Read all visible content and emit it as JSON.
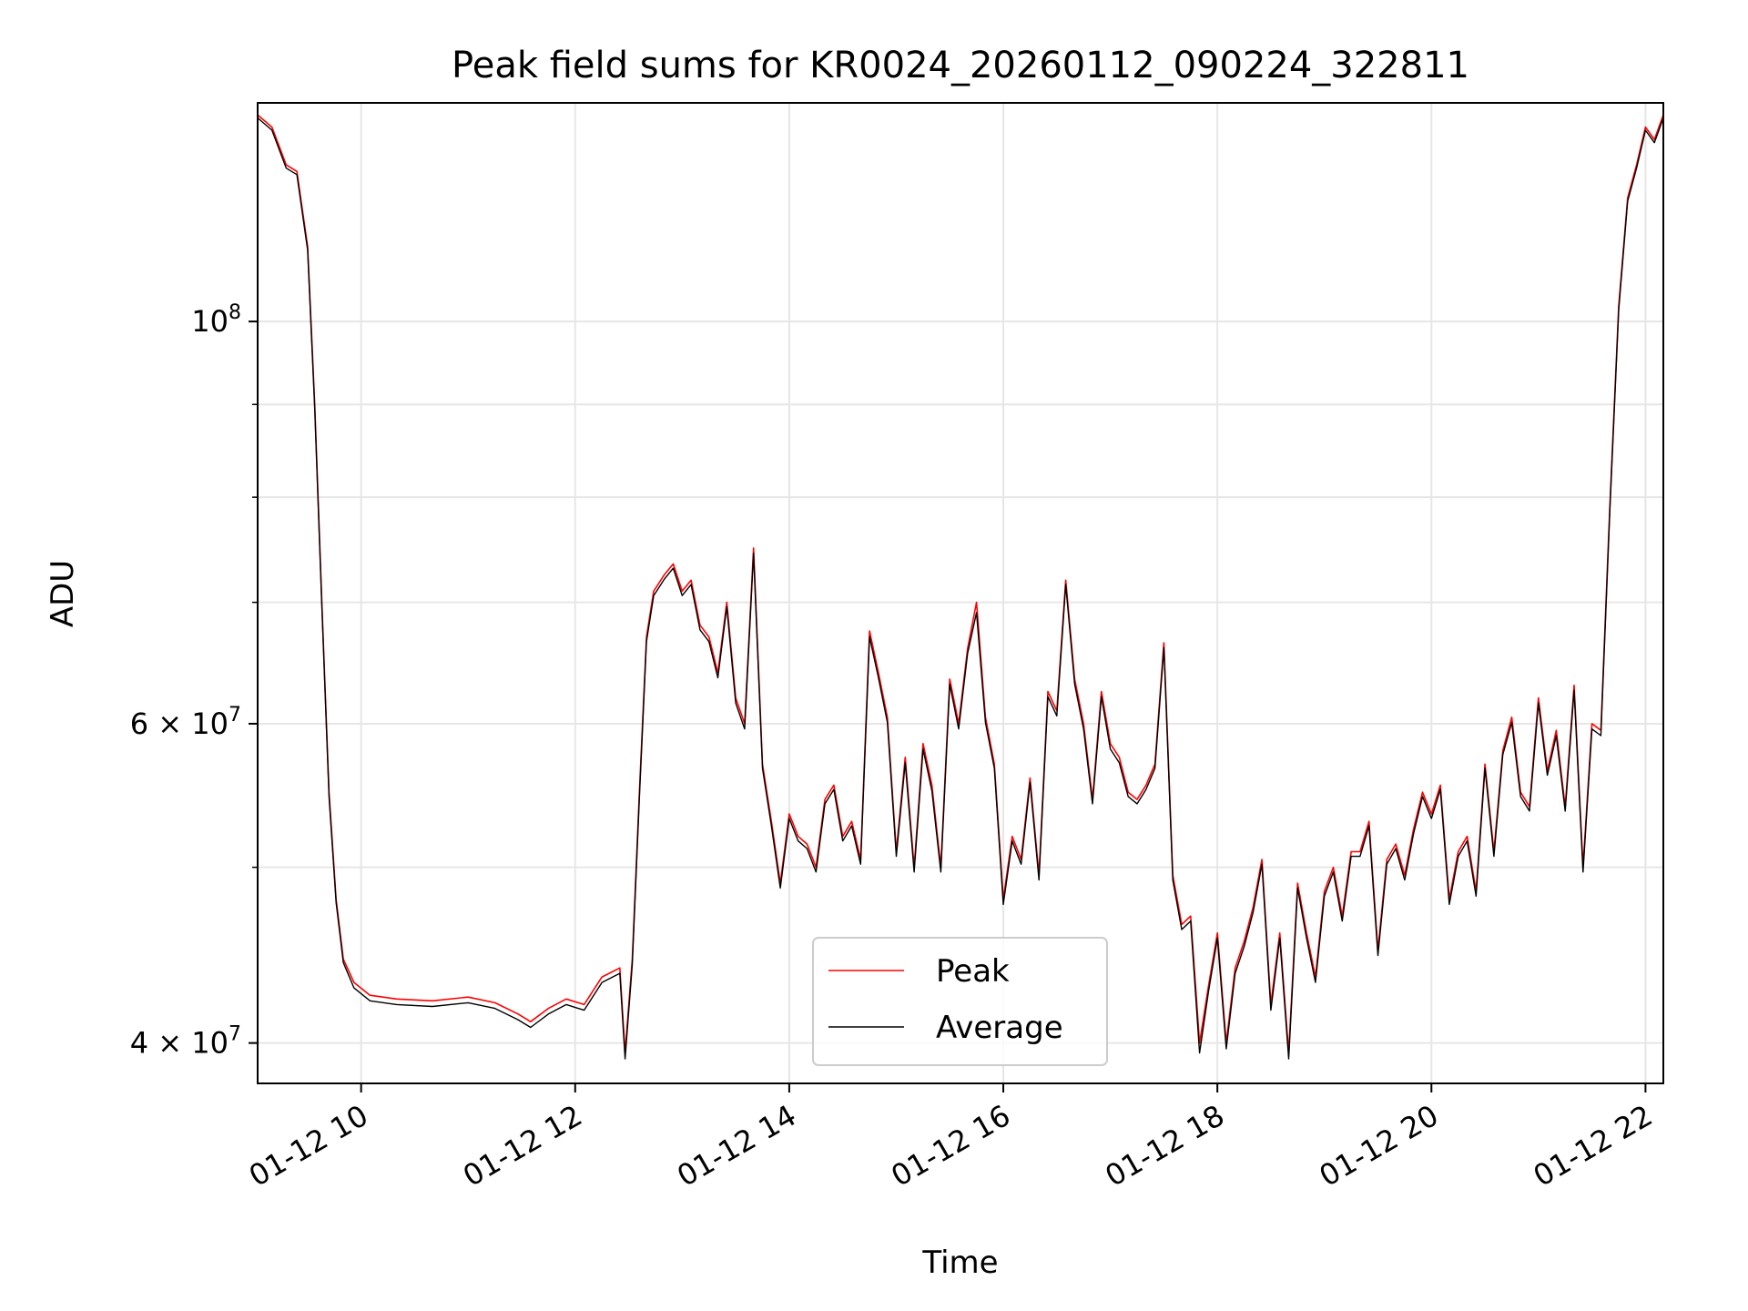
{
  "chart_data": {
    "type": "line",
    "title": "Peak field sums for KR0024_20260112_090224_322811",
    "xlabel": "Time",
    "ylabel": "ADU",
    "y_scale": "log",
    "grid": true,
    "legend_position": "lower-center",
    "xlim": [
      "01-12 09:02",
      "01-12 22:10"
    ],
    "ylim": [
      38000000,
      132000000
    ],
    "x_tick_labels": [
      "01-12 10",
      "01-12 12",
      "01-12 14",
      "01-12 16",
      "01-12 18",
      "01-12 20",
      "01-12 22"
    ],
    "x_ticks": [
      "01-12 10:00",
      "01-12 12:00",
      "01-12 14:00",
      "01-12 16:00",
      "01-12 18:00",
      "01-12 20:00",
      "01-12 22:00"
    ],
    "y_ticks": [
      {
        "value": 40000000,
        "label": "4 × 10",
        "exp": "7"
      },
      {
        "value": 60000000,
        "label": "6 × 10",
        "exp": "7"
      },
      {
        "value": 100000000,
        "label": "10",
        "exp": "8"
      }
    ],
    "y_minor_ticks": [
      50000000,
      70000000,
      80000000,
      90000000
    ],
    "series": [
      {
        "name": "Peak",
        "color": "#ff0000",
        "x": [
          "01-12 09:02",
          "01-12 09:10",
          "01-12 09:18",
          "01-12 09:24",
          "01-12 09:30",
          "01-12 09:34",
          "01-12 09:38",
          "01-12 09:42",
          "01-12 09:46",
          "01-12 09:50",
          "01-12 09:56",
          "01-12 10:05",
          "01-12 10:20",
          "01-12 10:40",
          "01-12 11:00",
          "01-12 11:15",
          "01-12 11:28",
          "01-12 11:35",
          "01-12 11:45",
          "01-12 11:55",
          "01-12 12:05",
          "01-12 12:15",
          "01-12 12:25",
          "01-12 12:28",
          "01-12 12:32",
          "01-12 12:36",
          "01-12 12:40",
          "01-12 12:44",
          "01-12 12:50",
          "01-12 12:55",
          "01-12 13:00",
          "01-12 13:05",
          "01-12 13:10",
          "01-12 13:15",
          "01-12 13:20",
          "01-12 13:25",
          "01-12 13:30",
          "01-12 13:35",
          "01-12 13:40",
          "01-12 13:45",
          "01-12 13:50",
          "01-12 13:55",
          "01-12 14:00",
          "01-12 14:05",
          "01-12 14:10",
          "01-12 14:15",
          "01-12 14:20",
          "01-12 14:25",
          "01-12 14:30",
          "01-12 14:35",
          "01-12 14:40",
          "01-12 14:45",
          "01-12 14:50",
          "01-12 14:55",
          "01-12 15:00",
          "01-12 15:05",
          "01-12 15:10",
          "01-12 15:15",
          "01-12 15:20",
          "01-12 15:25",
          "01-12 15:30",
          "01-12 15:35",
          "01-12 15:40",
          "01-12 15:45",
          "01-12 15:50",
          "01-12 15:55",
          "01-12 16:00",
          "01-12 16:05",
          "01-12 16:10",
          "01-12 16:15",
          "01-12 16:20",
          "01-12 16:25",
          "01-12 16:30",
          "01-12 16:35",
          "01-12 16:40",
          "01-12 16:45",
          "01-12 16:50",
          "01-12 16:55",
          "01-12 17:00",
          "01-12 17:05",
          "01-12 17:10",
          "01-12 17:15",
          "01-12 17:20",
          "01-12 17:25",
          "01-12 17:30",
          "01-12 17:35",
          "01-12 17:40",
          "01-12 17:45",
          "01-12 17:50",
          "01-12 17:55",
          "01-12 18:00",
          "01-12 18:05",
          "01-12 18:10",
          "01-12 18:15",
          "01-12 18:20",
          "01-12 18:25",
          "01-12 18:30",
          "01-12 18:35",
          "01-12 18:40",
          "01-12 18:45",
          "01-12 18:50",
          "01-12 18:55",
          "01-12 19:00",
          "01-12 19:05",
          "01-12 19:10",
          "01-12 19:15",
          "01-12 19:20",
          "01-12 19:25",
          "01-12 19:30",
          "01-12 19:35",
          "01-12 19:40",
          "01-12 19:45",
          "01-12 19:50",
          "01-12 19:55",
          "01-12 20:00",
          "01-12 20:05",
          "01-12 20:10",
          "01-12 20:15",
          "01-12 20:20",
          "01-12 20:25",
          "01-12 20:30",
          "01-12 20:35",
          "01-12 20:40",
          "01-12 20:45",
          "01-12 20:50",
          "01-12 20:55",
          "01-12 21:00",
          "01-12 21:05",
          "01-12 21:10",
          "01-12 21:15",
          "01-12 21:20",
          "01-12 21:25",
          "01-12 21:30",
          "01-12 21:35",
          "01-12 21:40",
          "01-12 21:45",
          "01-12 21:50",
          "01-12 21:55",
          "01-12 22:00",
          "01-12 22:05",
          "01-12 22:10"
        ],
        "y": [
          130000000,
          128000000,
          122000000,
          121000000,
          110000000,
          90000000,
          70000000,
          55000000,
          48000000,
          44500000,
          43200000,
          42500000,
          42300000,
          42200000,
          42400000,
          42100000,
          41500000,
          41100000,
          41800000,
          42300000,
          42000000,
          43500000,
          44000000,
          39500000,
          44500000,
          55000000,
          67000000,
          71000000,
          72500000,
          73500000,
          71000000,
          72000000,
          68000000,
          67000000,
          64000000,
          70000000,
          62000000,
          60000000,
          75000000,
          57000000,
          53000000,
          49000000,
          53500000,
          52000000,
          51500000,
          50000000,
          54500000,
          55500000,
          52000000,
          53000000,
          50500000,
          67500000,
          64000000,
          60500000,
          51000000,
          57500000,
          50000000,
          58500000,
          55500000,
          50000000,
          63500000,
          60000000,
          66000000,
          70000000,
          60500000,
          57000000,
          48000000,
          52000000,
          50500000,
          56000000,
          49500000,
          62500000,
          61000000,
          72000000,
          63500000,
          60000000,
          54500000,
          62500000,
          58500000,
          57500000,
          55000000,
          54500000,
          55500000,
          57000000,
          66500000,
          49500000,
          46500000,
          47000000,
          40000000,
          43000000,
          46000000,
          40000000,
          44000000,
          45500000,
          47500000,
          50500000,
          42000000,
          46000000,
          39500000,
          49000000,
          46000000,
          43500000,
          48500000,
          50000000,
          47000000,
          51000000,
          51000000,
          53000000,
          45000000,
          50500000,
          51500000,
          49500000,
          52500000,
          55000000,
          53500000,
          55500000,
          48000000,
          51000000,
          52000000,
          48500000,
          57000000,
          51000000,
          58000000,
          60500000,
          55000000,
          54000000,
          62000000,
          56500000,
          59500000,
          54000000,
          63000000,
          50000000,
          60000000,
          59500000,
          79000000,
          102000000,
          117000000,
          122000000,
          128000000,
          126000000,
          130000000
        ]
      },
      {
        "name": "Average",
        "color": "#000000",
        "x": [
          "01-12 09:02",
          "01-12 09:10",
          "01-12 09:18",
          "01-12 09:24",
          "01-12 09:30",
          "01-12 09:34",
          "01-12 09:38",
          "01-12 09:42",
          "01-12 09:46",
          "01-12 09:50",
          "01-12 09:56",
          "01-12 10:05",
          "01-12 10:20",
          "01-12 10:40",
          "01-12 11:00",
          "01-12 11:15",
          "01-12 11:28",
          "01-12 11:35",
          "01-12 11:45",
          "01-12 11:55",
          "01-12 12:05",
          "01-12 12:15",
          "01-12 12:25",
          "01-12 12:28",
          "01-12 12:32",
          "01-12 12:36",
          "01-12 12:40",
          "01-12 12:44",
          "01-12 12:50",
          "01-12 12:55",
          "01-12 13:00",
          "01-12 13:05",
          "01-12 13:10",
          "01-12 13:15",
          "01-12 13:20",
          "01-12 13:25",
          "01-12 13:30",
          "01-12 13:35",
          "01-12 13:40",
          "01-12 13:45",
          "01-12 13:50",
          "01-12 13:55",
          "01-12 14:00",
          "01-12 14:05",
          "01-12 14:10",
          "01-12 14:15",
          "01-12 14:20",
          "01-12 14:25",
          "01-12 14:30",
          "01-12 14:35",
          "01-12 14:40",
          "01-12 14:45",
          "01-12 14:50",
          "01-12 14:55",
          "01-12 15:00",
          "01-12 15:05",
          "01-12 15:10",
          "01-12 15:15",
          "01-12 15:20",
          "01-12 15:25",
          "01-12 15:30",
          "01-12 15:35",
          "01-12 15:40",
          "01-12 15:45",
          "01-12 15:50",
          "01-12 15:55",
          "01-12 16:00",
          "01-12 16:05",
          "01-12 16:10",
          "01-12 16:15",
          "01-12 16:20",
          "01-12 16:25",
          "01-12 16:30",
          "01-12 16:35",
          "01-12 16:40",
          "01-12 16:45",
          "01-12 16:50",
          "01-12 16:55",
          "01-12 17:00",
          "01-12 17:05",
          "01-12 17:10",
          "01-12 17:15",
          "01-12 17:20",
          "01-12 17:25",
          "01-12 17:30",
          "01-12 17:35",
          "01-12 17:40",
          "01-12 17:45",
          "01-12 17:50",
          "01-12 17:55",
          "01-12 18:00",
          "01-12 18:05",
          "01-12 18:10",
          "01-12 18:15",
          "01-12 18:20",
          "01-12 18:25",
          "01-12 18:30",
          "01-12 18:35",
          "01-12 18:40",
          "01-12 18:45",
          "01-12 18:50",
          "01-12 18:55",
          "01-12 19:00",
          "01-12 19:05",
          "01-12 19:10",
          "01-12 19:15",
          "01-12 19:20",
          "01-12 19:25",
          "01-12 19:30",
          "01-12 19:35",
          "01-12 19:40",
          "01-12 19:45",
          "01-12 19:50",
          "01-12 19:55",
          "01-12 20:00",
          "01-12 20:05",
          "01-12 20:10",
          "01-12 20:15",
          "01-12 20:20",
          "01-12 20:25",
          "01-12 20:30",
          "01-12 20:35",
          "01-12 20:40",
          "01-12 20:45",
          "01-12 20:50",
          "01-12 20:55",
          "01-12 21:00",
          "01-12 21:05",
          "01-12 21:10",
          "01-12 21:15",
          "01-12 21:20",
          "01-12 21:25",
          "01-12 21:30",
          "01-12 21:35",
          "01-12 21:40",
          "01-12 21:45",
          "01-12 21:50",
          "01-12 21:55",
          "01-12 22:00",
          "01-12 22:05",
          "01-12 22:10"
        ],
        "y": [
          129500000,
          127500000,
          121500000,
          120500000,
          109500000,
          89500000,
          69700000,
          54700000,
          47800000,
          44300000,
          42900000,
          42200000,
          42000000,
          41900000,
          42100000,
          41800000,
          41200000,
          40800000,
          41500000,
          42000000,
          41700000,
          43200000,
          43700000,
          39200000,
          44200000,
          54600000,
          66600000,
          70600000,
          72100000,
          73100000,
          70600000,
          71600000,
          67600000,
          66600000,
          63600000,
          69600000,
          61600000,
          59600000,
          74500000,
          56700000,
          52700000,
          48700000,
          53200000,
          51700000,
          51200000,
          49700000,
          54200000,
          55200000,
          51700000,
          52700000,
          50200000,
          67000000,
          63600000,
          60100000,
          50700000,
          57100000,
          49700000,
          58100000,
          55100000,
          49700000,
          63100000,
          59600000,
          65600000,
          69100000,
          60100000,
          56700000,
          47700000,
          51700000,
          50200000,
          55700000,
          49200000,
          62100000,
          60600000,
          71600000,
          63100000,
          59600000,
          54200000,
          62100000,
          58100000,
          57100000,
          54700000,
          54200000,
          55200000,
          56700000,
          66100000,
          49200000,
          46200000,
          46700000,
          39500000,
          42700000,
          45700000,
          39700000,
          43700000,
          45200000,
          47200000,
          50200000,
          41700000,
          45700000,
          39200000,
          48700000,
          45700000,
          43200000,
          48200000,
          49700000,
          46700000,
          50700000,
          50700000,
          52700000,
          44700000,
          50200000,
          51200000,
          49200000,
          52200000,
          54700000,
          53200000,
          55200000,
          47700000,
          50700000,
          51700000,
          48200000,
          56700000,
          50700000,
          57700000,
          60100000,
          54700000,
          53700000,
          61600000,
          56200000,
          59100000,
          53700000,
          62600000,
          49700000,
          59600000,
          59100000,
          78500000,
          101500000,
          116500000,
          121500000,
          127500000,
          125500000,
          129500000
        ]
      }
    ]
  }
}
